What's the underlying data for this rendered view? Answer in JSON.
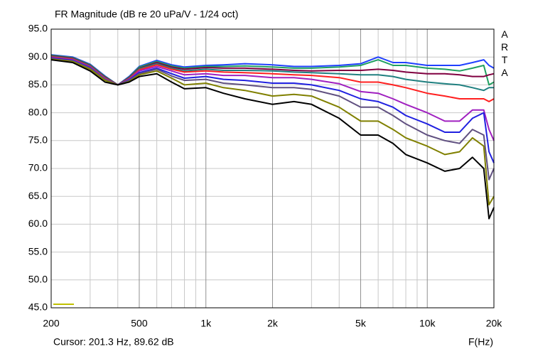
{
  "chart_data": {
    "type": "line",
    "title": "FR Magnitude (dB re 20 uPa/V - 1/24 oct)",
    "cursor": "Cursor: 201.3 Hz, 89.62 dB",
    "xlabel": "F(Hz)",
    "logo": "ARTA",
    "xscale": "log",
    "grid": true,
    "xlim": [
      200,
      20000
    ],
    "ylim": [
      45,
      95
    ],
    "xticks": [
      200,
      500,
      {
        "value": 1000,
        "label": "1k"
      },
      {
        "value": 2000,
        "label": "2k"
      },
      {
        "value": 5000,
        "label": "5k"
      },
      {
        "value": 10000,
        "label": "10k"
      },
      {
        "value": 20000,
        "label": "20k"
      }
    ],
    "x_minor_ticks": [
      300,
      400,
      600,
      700,
      800,
      900,
      3000,
      4000,
      6000,
      7000,
      8000,
      9000
    ],
    "yticks": [
      {
        "value": 95,
        "label": "95.0"
      },
      {
        "value": 90,
        "label": "90.0"
      },
      {
        "value": 85,
        "label": "85.0"
      },
      {
        "value": 80,
        "label": "80.0"
      },
      {
        "value": 75,
        "label": "75.0"
      },
      {
        "value": 70,
        "label": "70.0"
      },
      {
        "value": 65,
        "label": "65.0"
      },
      {
        "value": 60,
        "label": "60.0"
      },
      {
        "value": 55,
        "label": "55.0"
      },
      {
        "value": 50,
        "label": "50.0"
      },
      {
        "value": 45,
        "label": "45.0"
      }
    ],
    "x": [
      200,
      250,
      300,
      350,
      400,
      450,
      500,
      600,
      700,
      800,
      1000,
      1200,
      1500,
      2000,
      2500,
      3000,
      4000,
      5000,
      6000,
      7000,
      8000,
      10000,
      12000,
      14000,
      16000,
      18000,
      19000,
      20000
    ],
    "series": [
      {
        "color": "#2040ff",
        "values": [
          90.4,
          90,
          88.7,
          86.6,
          85,
          86.5,
          88.3,
          89.4,
          88.6,
          88.2,
          88.5,
          88.6,
          88.8,
          88.6,
          88.3,
          88.3,
          88.5,
          88.8,
          90,
          89,
          89,
          88.5,
          88.5,
          88.5,
          89,
          89.5,
          88.5,
          88
        ]
      },
      {
        "color": "#20a060",
        "values": [
          90.3,
          89.9,
          88.6,
          86.5,
          85,
          86.4,
          88.2,
          89.2,
          88.4,
          88,
          88.3,
          88.3,
          88.4,
          88.2,
          88,
          88,
          88.2,
          88.5,
          89.5,
          88.5,
          88.5,
          88,
          87.8,
          87.5,
          88,
          88.5,
          85,
          85.5
        ]
      },
      {
        "color": "#800040",
        "values": [
          90.2,
          89.8,
          88.5,
          86.4,
          85,
          86.3,
          88,
          89,
          88.2,
          87.8,
          88.1,
          88,
          88,
          87.8,
          87.6,
          87.5,
          87.6,
          87.6,
          87.8,
          87.6,
          87.3,
          87,
          87,
          86.8,
          86.5,
          86.5,
          86.8,
          87
        ]
      },
      {
        "color": "#208080",
        "values": [
          90.1,
          89.7,
          88.4,
          86.3,
          85,
          86.2,
          87.9,
          88.8,
          88,
          87.5,
          87.8,
          87.6,
          87.6,
          87.5,
          87.3,
          87.2,
          87,
          86.8,
          86.8,
          86.5,
          86,
          85.5,
          85.2,
          85,
          84.5,
          84,
          84.5,
          84.5
        ]
      },
      {
        "color": "#ff2020",
        "values": [
          90,
          89.6,
          88.3,
          86.2,
          85,
          86.1,
          87.7,
          88.6,
          87.8,
          87.3,
          87.5,
          87.3,
          87.2,
          87,
          86.8,
          86.7,
          86.3,
          85.5,
          85.5,
          85,
          84.5,
          83.5,
          83,
          82.5,
          82.5,
          82.5,
          82,
          82.5
        ]
      },
      {
        "color": "#a020c0",
        "values": [
          89.9,
          89.5,
          88.2,
          86.1,
          85,
          86,
          87.5,
          88.3,
          87.5,
          86.8,
          87,
          86.7,
          86.7,
          86.3,
          86.3,
          86,
          85.2,
          83.8,
          83.5,
          82.5,
          81.5,
          80,
          78.5,
          78.5,
          80.5,
          80.5,
          77,
          75
        ]
      },
      {
        "color": "#2020e0",
        "values": [
          89.8,
          89.4,
          88.1,
          86,
          85,
          85.9,
          87.2,
          88,
          87,
          86.2,
          86.5,
          86,
          85.8,
          85.3,
          85.3,
          85,
          84,
          82.5,
          82,
          81,
          79.5,
          78,
          76.5,
          76.5,
          79,
          80,
          73,
          71
        ]
      },
      {
        "color": "#605080",
        "values": [
          89.7,
          89.3,
          88,
          86,
          85,
          85.8,
          87,
          87.8,
          86.6,
          85.8,
          86,
          85.3,
          85,
          84.5,
          84.5,
          84.2,
          83,
          81,
          81,
          79.5,
          78,
          76,
          75,
          74.5,
          77,
          76,
          68,
          70
        ]
      },
      {
        "color": "#808000",
        "values": [
          89.6,
          89.2,
          87.8,
          85.8,
          85,
          85.6,
          86.8,
          87.5,
          86.2,
          85,
          85.3,
          84.5,
          84,
          83,
          83.3,
          83,
          81,
          78.5,
          78.5,
          77,
          75.5,
          74,
          72.5,
          73,
          75.5,
          74,
          63.5,
          65
        ]
      },
      {
        "color": "#000000",
        "values": [
          89.5,
          89,
          87.5,
          85.5,
          85,
          85.5,
          86.5,
          87,
          85.5,
          84.3,
          84.5,
          83.5,
          82.5,
          81.5,
          82,
          81.5,
          79,
          76,
          76,
          74.5,
          72.5,
          71,
          69.5,
          70,
          72,
          70,
          61,
          63
        ]
      }
    ]
  }
}
